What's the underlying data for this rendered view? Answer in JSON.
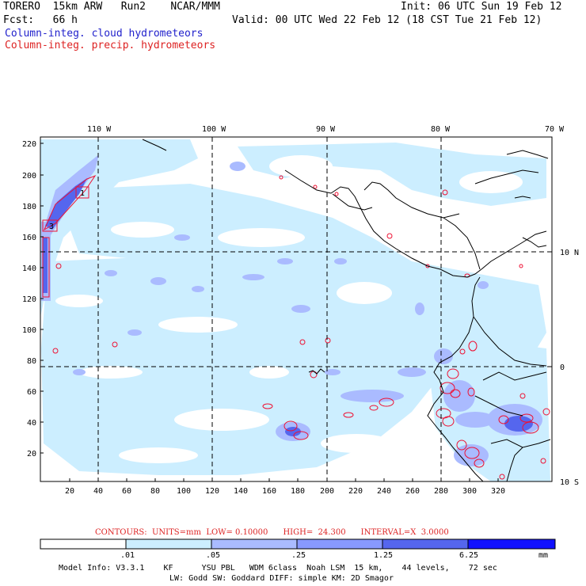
{
  "header": {
    "title_left": "TORERO  15km ARW   Run2    NCAR/MMM",
    "init": "Init: 06 UTC Sun 19 Feb 12",
    "fcst": "Fcst:   66 h",
    "valid": "Valid: 00 UTC Wed 22 Feb 12 (18 CST Tue 21 Feb 12)",
    "field1": "Column-integ. cloud hydrometeors",
    "field2": "Column-integ. precip. hydrometeors"
  },
  "colors": {
    "field1": "#2222cc",
    "field2": "#dd2222",
    "shade_0": "#ffffff",
    "shade_1": "#cceeff",
    "shade_2": "#aabbff",
    "shade_3": "#8899ff",
    "shade_4": "#5566ee",
    "shade_5": "#3344dd",
    "shade_6": "#1111ff",
    "contour": "#ee1133"
  },
  "map": {
    "lon_labels": [
      "110 W",
      "100 W",
      "90 W",
      "80 W",
      "70 W"
    ],
    "lat_labels": [
      "10 N",
      "0",
      "10 S"
    ],
    "y_ticks": [
      "220",
      "200",
      "180",
      "160",
      "140",
      "120",
      "100",
      "80",
      "60",
      "40",
      "20"
    ],
    "x_ticks": [
      "20",
      "40",
      "60",
      "80",
      "100",
      "120",
      "140",
      "160",
      "180",
      "200",
      "220",
      "240",
      "260",
      "280",
      "300",
      "320"
    ],
    "box_labels": [
      "1",
      "3"
    ]
  },
  "contours_line": "CONTOURS:  UNITS=mm  LOW= 0.10000      HIGH=  24.300      INTERVAL=X  3.0000",
  "colorbar": {
    "labels": [
      ".01",
      ".05",
      ".25",
      "1.25",
      "6.25"
    ],
    "unit": "mm"
  },
  "model_info": {
    "line1": "Model Info: V3.3.1    KF      YSU PBL   WDM 6class  Noah LSM  15 km,    44 levels,    72 sec",
    "line2": "LW: Godd SW: Goddard DIFF: simple KM: 2D Smagor"
  }
}
